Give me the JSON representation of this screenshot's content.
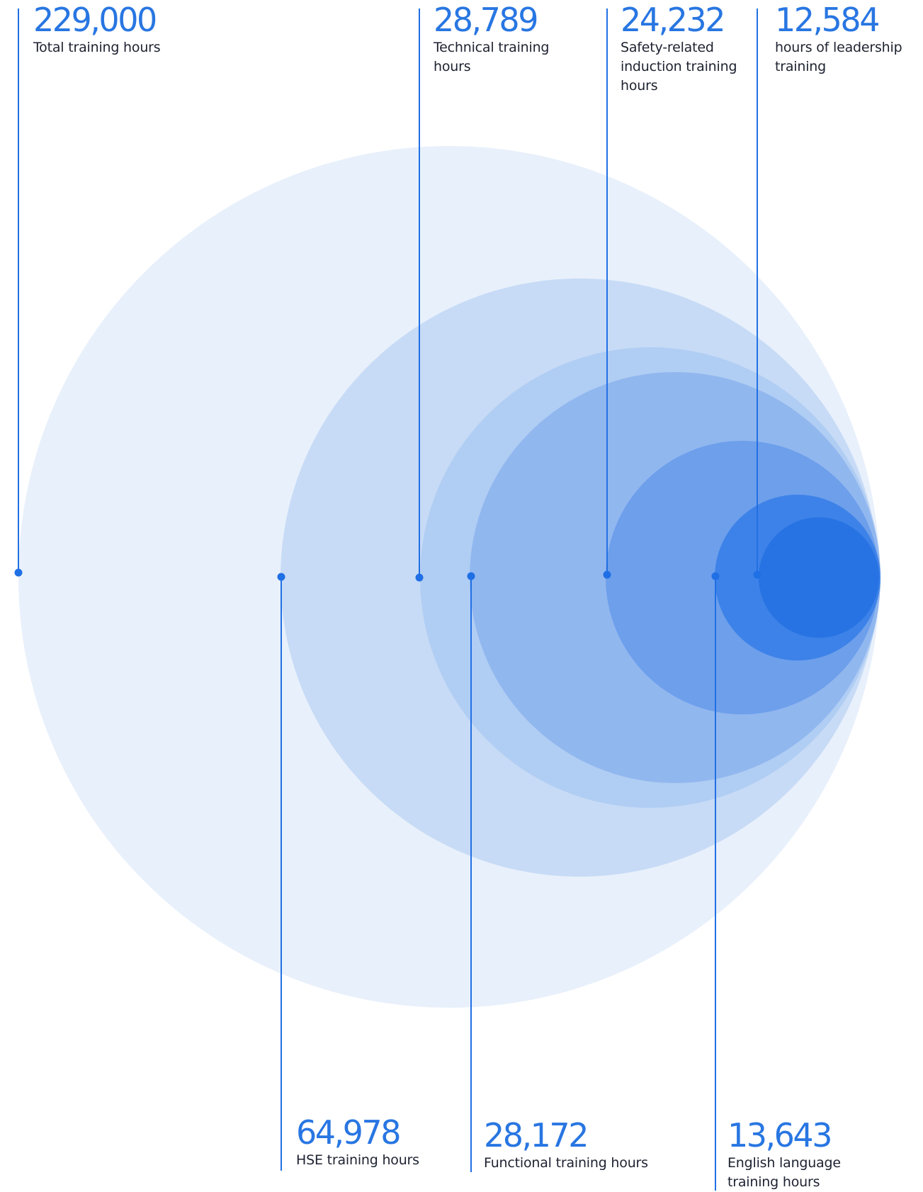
{
  "colors": {
    "line": "#2170e4",
    "dot": "#1f6fe5",
    "value_text": "#2876e2",
    "caption_text": "#1d2230",
    "circle_fills": [
      "#e8f0fb",
      "#c7dbf6",
      "#b0cdf3",
      "#91b7ef",
      "#6d9feb",
      "#3d82e8",
      "#2773e3"
    ]
  },
  "chart_data": {
    "type": "nested-circles",
    "items": [
      {
        "id": "total",
        "value": "229,000",
        "caption": "Total training hours"
      },
      {
        "id": "hse",
        "value": "64,978",
        "caption": "HSE training hours"
      },
      {
        "id": "technical",
        "value": "28,789",
        "caption": "Technical training hours"
      },
      {
        "id": "functional",
        "value": "28,172",
        "caption": "Functional training hours"
      },
      {
        "id": "safety",
        "value": "24,232",
        "caption": "Safety-related induction training hours"
      },
      {
        "id": "english",
        "value": "13,643",
        "caption": "English language training hours"
      },
      {
        "id": "leadership",
        "value": "12,584",
        "caption": "hours of leadership training"
      }
    ]
  }
}
